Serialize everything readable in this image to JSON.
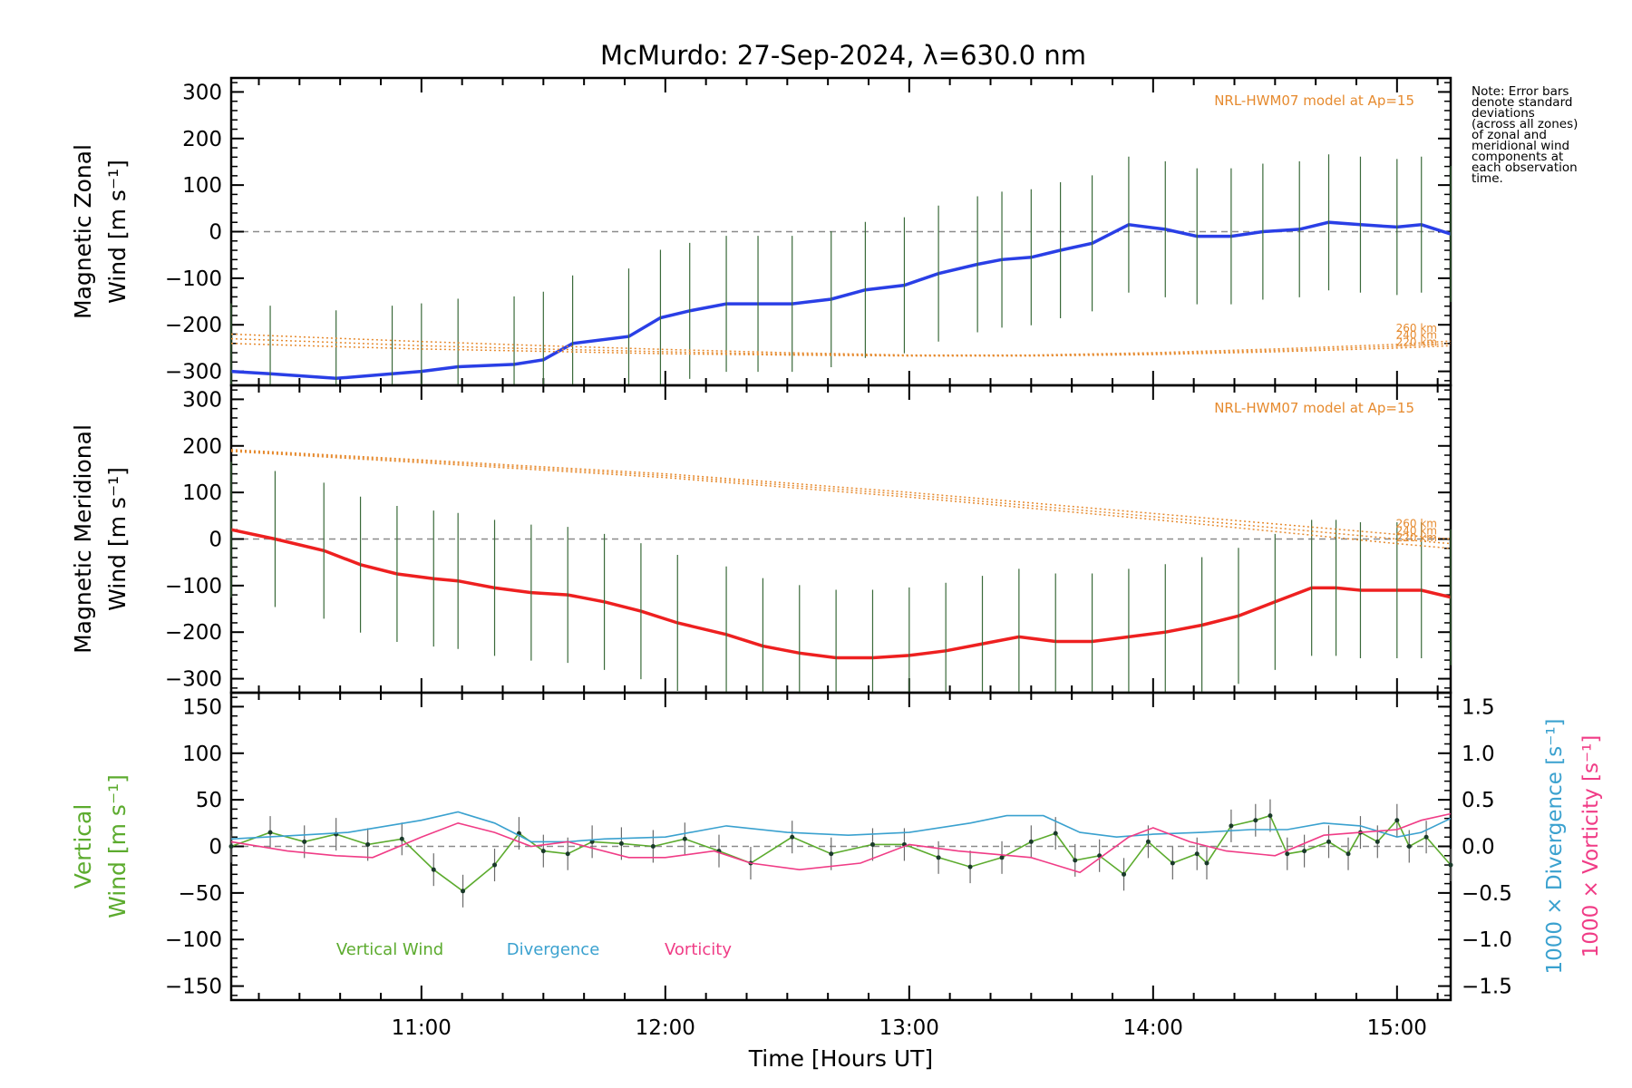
{
  "chart_data": [
    {
      "type": "line",
      "title": "McMurdo: 27-Sep-2024, λ=630.0 nm",
      "panel": "zonal",
      "ylabel_line1": "Magnetic Zonal",
      "ylabel_line2": "Wind [m s⁻¹]",
      "ylim": [
        -330,
        330
      ],
      "yticks": [
        300,
        200,
        100,
        0,
        -100,
        -200,
        -300
      ],
      "xlim": [
        10.22,
        15.22
      ],
      "model_label": "NRL-HWM07 model at Ap=15",
      "model_altitudes": [
        "260 km",
        "240 km",
        "220 km"
      ],
      "series": [
        {
          "name": "Magnetic Zonal Wind",
          "color": "#2a3fe6",
          "x": [
            10.22,
            10.38,
            10.65,
            10.88,
            11.0,
            11.15,
            11.38,
            11.5,
            11.62,
            11.85,
            11.98,
            12.1,
            12.25,
            12.38,
            12.52,
            12.68,
            12.82,
            12.98,
            13.12,
            13.28,
            13.38,
            13.5,
            13.62,
            13.75,
            13.9,
            14.05,
            14.18,
            14.32,
            14.45,
            14.6,
            14.72,
            14.85,
            15.0,
            15.1,
            15.22
          ],
          "values": [
            -300,
            -305,
            -315,
            -305,
            -300,
            -290,
            -285,
            -275,
            -240,
            -225,
            -185,
            -170,
            -155,
            -155,
            -155,
            -145,
            -125,
            -115,
            -90,
            -70,
            -60,
            -55,
            -40,
            -25,
            15,
            5,
            -10,
            -10,
            0,
            5,
            20,
            15,
            10,
            15,
            -5
          ]
        },
        {
          "name": "HWM07 260 km",
          "color": "#e68a2e",
          "x": [
            10.22,
            10.6,
            11.0,
            11.5,
            12.0,
            12.5,
            13.0,
            13.5,
            14.0,
            14.5,
            15.0,
            15.22
          ],
          "values": [
            -220,
            -228,
            -236,
            -245,
            -253,
            -260,
            -265,
            -265,
            -260,
            -252,
            -242,
            -235
          ]
        },
        {
          "name": "HWM07 240 km",
          "color": "#e68a2e",
          "x": [
            10.22,
            10.6,
            11.0,
            11.5,
            12.0,
            12.5,
            13.0,
            13.5,
            14.0,
            14.5,
            15.0,
            15.22
          ],
          "values": [
            -230,
            -237,
            -245,
            -252,
            -258,
            -263,
            -266,
            -266,
            -262,
            -255,
            -246,
            -240
          ]
        },
        {
          "name": "HWM07 220 km",
          "color": "#e68a2e",
          "x": [
            10.22,
            10.6,
            11.0,
            11.5,
            12.0,
            12.5,
            13.0,
            13.5,
            14.0,
            14.5,
            15.0,
            15.22
          ],
          "values": [
            -240,
            -246,
            -252,
            -257,
            -262,
            -265,
            -267,
            -267,
            -264,
            -258,
            -250,
            -245
          ]
        }
      ]
    },
    {
      "type": "line",
      "panel": "meridional",
      "ylabel_line1": "Magnetic Meridional",
      "ylabel_line2": "Wind [m s⁻¹]",
      "ylim": [
        -330,
        330
      ],
      "yticks": [
        300,
        200,
        100,
        0,
        -100,
        -200,
        -300
      ],
      "xlim": [
        10.22,
        15.22
      ],
      "model_label": "NRL-HWM07 model at Ap=15",
      "model_altitudes": [
        "260 km",
        "240 km",
        "220 km"
      ],
      "series": [
        {
          "name": "Magnetic Meridional Wind",
          "color": "#ee2020",
          "x": [
            10.22,
            10.4,
            10.6,
            10.75,
            10.9,
            11.05,
            11.15,
            11.3,
            11.45,
            11.6,
            11.75,
            11.9,
            12.05,
            12.25,
            12.4,
            12.55,
            12.7,
            12.85,
            13.0,
            13.15,
            13.3,
            13.45,
            13.6,
            13.75,
            13.9,
            14.05,
            14.2,
            14.35,
            14.5,
            14.65,
            14.75,
            14.85,
            15.0,
            15.1,
            15.22
          ],
          "values": [
            20,
            0,
            -25,
            -55,
            -75,
            -85,
            -90,
            -105,
            -115,
            -120,
            -135,
            -155,
            -180,
            -205,
            -230,
            -245,
            -255,
            -255,
            -250,
            -240,
            -225,
            -210,
            -220,
            -220,
            -210,
            -200,
            -185,
            -165,
            -135,
            -105,
            -105,
            -110,
            -110,
            -110,
            -125
          ]
        },
        {
          "name": "HWM07 260 km",
          "color": "#e68a2e",
          "x": [
            10.22,
            11.0,
            12.0,
            13.0,
            14.0,
            15.0,
            15.22
          ],
          "values": [
            192,
            170,
            140,
            100,
            55,
            10,
            0
          ]
        },
        {
          "name": "HWM07 240 km",
          "color": "#e68a2e",
          "x": [
            10.22,
            11.0,
            12.0,
            13.0,
            14.0,
            15.0,
            15.22
          ],
          "values": [
            190,
            167,
            136,
            95,
            48,
            0,
            -10
          ]
        },
        {
          "name": "HWM07 220 km",
          "color": "#e68a2e",
          "x": [
            10.22,
            11.0,
            12.0,
            13.0,
            14.0,
            15.0,
            15.22
          ],
          "values": [
            188,
            164,
            132,
            90,
            42,
            -10,
            -20
          ]
        }
      ]
    },
    {
      "type": "line",
      "panel": "vertical",
      "ylabel_line1": "Vertical",
      "ylabel_line2": "Wind [m s⁻¹]",
      "ylim": [
        -165,
        165
      ],
      "yticks": [
        150,
        100,
        50,
        0,
        -50,
        -100,
        -150
      ],
      "right_axis": {
        "ylim": [
          -1.65,
          1.65
        ],
        "yticks": [
          "1.5",
          "1.0",
          "0.5",
          "0.0",
          "−0.5",
          "−1.0",
          "−1.5"
        ],
        "label_divergence": "1000 × Divergence [s⁻¹]",
        "label_vorticity": "1000 × Vorticity [s⁻¹]"
      },
      "xlim": [
        10.22,
        15.22
      ],
      "xticks": [
        "11:00",
        "12:00",
        "13:00",
        "14:00",
        "15:00"
      ],
      "xlabel": "Time [Hours UT]",
      "legend": [
        {
          "label": "Vertical Wind",
          "color": "#5cab2e"
        },
        {
          "label": "Divergence",
          "color": "#3aa1cf"
        },
        {
          "label": "Vorticity",
          "color": "#f03c86"
        }
      ],
      "series": [
        {
          "name": "Vertical Wind",
          "color": "#5cab2e",
          "x": [
            10.22,
            10.38,
            10.52,
            10.65,
            10.78,
            10.92,
            11.05,
            11.17,
            11.3,
            11.4,
            11.5,
            11.6,
            11.7,
            11.82,
            11.95,
            12.08,
            12.22,
            12.35,
            12.52,
            12.68,
            12.85,
            12.98,
            13.12,
            13.25,
            13.38,
            13.5,
            13.6,
            13.68,
            13.78,
            13.88,
            13.98,
            14.08,
            14.18,
            14.22,
            14.32,
            14.42,
            14.48,
            14.55,
            14.62,
            14.72,
            14.8,
            14.85,
            14.92,
            15.0,
            15.05,
            15.12,
            15.22
          ],
          "values": [
            0,
            15,
            5,
            13,
            2,
            8,
            -25,
            -48,
            -20,
            14,
            -5,
            -8,
            5,
            3,
            0,
            8,
            -5,
            -18,
            10,
            -8,
            2,
            2,
            -12,
            -22,
            -12,
            5,
            14,
            -15,
            -10,
            -30,
            5,
            -18,
            -8,
            -18,
            22,
            28,
            33,
            -8,
            -5,
            5,
            -8,
            15,
            5,
            28,
            0,
            10,
            -20
          ]
        },
        {
          "name": "Divergence",
          "color": "#3aa1cf",
          "x": [
            10.22,
            10.5,
            10.7,
            11.0,
            11.15,
            11.3,
            11.45,
            11.6,
            11.75,
            12.0,
            12.25,
            12.5,
            12.75,
            13.0,
            13.25,
            13.4,
            13.55,
            13.7,
            13.85,
            14.0,
            14.2,
            14.4,
            14.55,
            14.7,
            14.85,
            15.0,
            15.1,
            15.22
          ],
          "values": [
            0.08,
            0.12,
            0.15,
            0.28,
            0.37,
            0.25,
            0.05,
            0.05,
            0.08,
            0.1,
            0.22,
            0.15,
            0.12,
            0.15,
            0.25,
            0.33,
            0.33,
            0.15,
            0.1,
            0.13,
            0.15,
            0.18,
            0.18,
            0.25,
            0.22,
            0.1,
            0.15,
            0.3
          ]
        },
        {
          "name": "Vorticity",
          "color": "#f03c86",
          "x": [
            10.22,
            10.45,
            10.65,
            10.8,
            11.0,
            11.15,
            11.3,
            11.45,
            11.6,
            11.85,
            12.0,
            12.2,
            12.35,
            12.55,
            12.8,
            13.0,
            13.2,
            13.5,
            13.7,
            13.9,
            14.0,
            14.15,
            14.3,
            14.5,
            14.7,
            14.85,
            15.0,
            15.1,
            15.22
          ],
          "values": [
            0.05,
            -0.05,
            -0.1,
            -0.12,
            0.1,
            0.25,
            0.15,
            0.0,
            0.05,
            -0.12,
            -0.12,
            -0.05,
            -0.18,
            -0.25,
            -0.18,
            0.02,
            -0.05,
            -0.12,
            -0.28,
            0.1,
            0.2,
            0.05,
            -0.05,
            -0.1,
            0.12,
            0.15,
            0.18,
            0.28,
            0.35
          ]
        }
      ]
    }
  ],
  "note": [
    "Note: Error bars",
    "denote standard",
    "deviations",
    "(across all zones)",
    "of zonal and",
    "meridional wind",
    "components at",
    "each observation",
    "time."
  ]
}
